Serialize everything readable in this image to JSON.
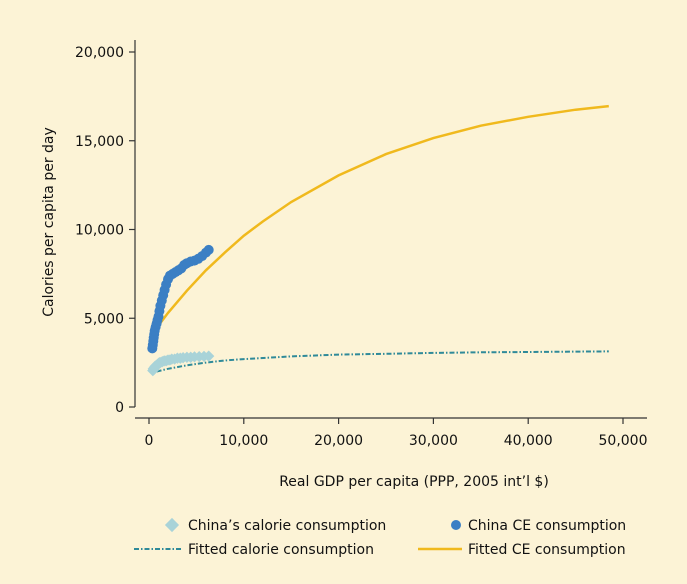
{
  "colors": {
    "background": "#fcf3d6",
    "axis": "#333333",
    "china_calorie": "#a9d3d8",
    "china_ce": "#3b7fc4",
    "fitted_calorie": "#2f8a99",
    "fitted_ce": "#f0b91d"
  },
  "chart_data": {
    "type": "scatter",
    "title": "",
    "xlabel": "Real GDP per capita (PPP, 2005 int’l $)",
    "ylabel": "Calories per capita per day",
    "xlim": [
      -500,
      52000
    ],
    "ylim": [
      -500,
      21500
    ],
    "x_ticks": [
      0,
      10000,
      20000,
      30000,
      40000,
      50000
    ],
    "x_tick_labels": [
      "0",
      "10,000",
      "20,000",
      "30,000",
      "40,000",
      "50,000"
    ],
    "y_ticks": [
      0,
      5000,
      10000,
      15000,
      20000
    ],
    "y_tick_labels": [
      "0",
      "5,000",
      "10,000",
      "15,000",
      "20,000"
    ],
    "grid": false,
    "legend_position": "bottom",
    "series": [
      {
        "name": "China’s calorie consumption",
        "kind": "scatter",
        "marker": "diamond",
        "color": "#a9d3d8",
        "points": [
          [
            400,
            2050
          ],
          [
            450,
            2150
          ],
          [
            500,
            2100
          ],
          [
            550,
            2200
          ],
          [
            600,
            2250
          ],
          [
            650,
            2300
          ],
          [
            700,
            2250
          ],
          [
            800,
            2350
          ],
          [
            900,
            2400
          ],
          [
            1000,
            2450
          ],
          [
            1100,
            2500
          ],
          [
            1200,
            2500
          ],
          [
            1400,
            2550
          ],
          [
            1600,
            2600
          ],
          [
            1800,
            2600
          ],
          [
            2000,
            2650
          ],
          [
            2200,
            2650
          ],
          [
            2400,
            2700
          ],
          [
            2700,
            2700
          ],
          [
            3000,
            2750
          ],
          [
            3300,
            2750
          ],
          [
            3600,
            2780
          ],
          [
            4000,
            2800
          ],
          [
            4400,
            2800
          ],
          [
            4800,
            2820
          ],
          [
            5300,
            2840
          ],
          [
            5800,
            2850
          ],
          [
            6300,
            2870
          ]
        ]
      },
      {
        "name": "China CE consumption",
        "kind": "scatter",
        "marker": "circle",
        "color": "#3b7fc4",
        "points": [
          [
            350,
            3300
          ],
          [
            400,
            3500
          ],
          [
            450,
            3700
          ],
          [
            500,
            3900
          ],
          [
            550,
            4100
          ],
          [
            600,
            4300
          ],
          [
            700,
            4500
          ],
          [
            800,
            4700
          ],
          [
            900,
            4900
          ],
          [
            1000,
            5100
          ],
          [
            1100,
            5400
          ],
          [
            1200,
            5700
          ],
          [
            1350,
            6000
          ],
          [
            1500,
            6300
          ],
          [
            1650,
            6600
          ],
          [
            1800,
            6900
          ],
          [
            2000,
            7200
          ],
          [
            2200,
            7400
          ],
          [
            2500,
            7500
          ],
          [
            2800,
            7600
          ],
          [
            3100,
            7700
          ],
          [
            3400,
            7800
          ],
          [
            3700,
            8000
          ],
          [
            4000,
            8100
          ],
          [
            4400,
            8200
          ],
          [
            4800,
            8250
          ],
          [
            5200,
            8350
          ],
          [
            5600,
            8500
          ],
          [
            6000,
            8700
          ],
          [
            6300,
            8850
          ]
        ]
      },
      {
        "name": "Fitted calorie consumption",
        "kind": "line",
        "dash": "dashdot",
        "color": "#2f8a99",
        "points": [
          [
            800,
            2000
          ],
          [
            2000,
            2150
          ],
          [
            4000,
            2350
          ],
          [
            6000,
            2500
          ],
          [
            8000,
            2620
          ],
          [
            10000,
            2700
          ],
          [
            15000,
            2850
          ],
          [
            20000,
            2950
          ],
          [
            25000,
            3000
          ],
          [
            30000,
            3050
          ],
          [
            35000,
            3080
          ],
          [
            40000,
            3100
          ],
          [
            45000,
            3120
          ],
          [
            48500,
            3130
          ]
        ]
      },
      {
        "name": "Fitted CE consumption",
        "kind": "line",
        "color": "#f0b91d",
        "points": [
          [
            800,
            4450
          ],
          [
            2000,
            5300
          ],
          [
            4000,
            6550
          ],
          [
            6000,
            7700
          ],
          [
            8000,
            8700
          ],
          [
            10000,
            9650
          ],
          [
            12000,
            10450
          ],
          [
            15000,
            11550
          ],
          [
            20000,
            13050
          ],
          [
            25000,
            14250
          ],
          [
            30000,
            15150
          ],
          [
            35000,
            15850
          ],
          [
            40000,
            16350
          ],
          [
            45000,
            16750
          ],
          [
            48500,
            16950
          ]
        ]
      }
    ]
  }
}
